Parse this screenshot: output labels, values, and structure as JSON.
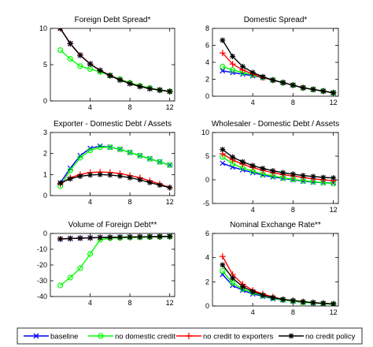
{
  "chart_data": [
    {
      "type": "line",
      "title": "Foreign Debt Spread*",
      "x": [
        1,
        2,
        3,
        4,
        5,
        6,
        7,
        8,
        9,
        10,
        11,
        12
      ],
      "xticks": [
        4,
        8,
        12
      ],
      "xlim": [
        0,
        12.5
      ],
      "ylim": [
        0,
        10
      ],
      "yticks": [
        0,
        5,
        10
      ],
      "series": [
        {
          "name": "baseline",
          "values": [
            10,
            7.9,
            6.3,
            5.1,
            4.2,
            3.5,
            2.9,
            2.4,
            2.0,
            1.7,
            1.5,
            1.3
          ]
        },
        {
          "name": "no domestic credit",
          "values": [
            7.0,
            5.8,
            4.8,
            4.4,
            4.0,
            3.5,
            3.0,
            2.5,
            2.1,
            1.8,
            1.5,
            1.3
          ]
        },
        {
          "name": "no credit to exporters",
          "values": [
            10,
            7.9,
            6.3,
            5.1,
            4.2,
            3.5,
            2.9,
            2.4,
            2.0,
            1.7,
            1.5,
            1.3
          ]
        },
        {
          "name": "no credit policy",
          "values": [
            10,
            7.9,
            6.3,
            5.1,
            4.2,
            3.5,
            2.9,
            2.4,
            2.0,
            1.7,
            1.5,
            1.3
          ]
        }
      ]
    },
    {
      "type": "line",
      "title": "Domestic Spread*",
      "x": [
        1,
        2,
        3,
        4,
        5,
        6,
        7,
        8,
        9,
        10,
        11,
        12
      ],
      "xticks": [
        4,
        8,
        12
      ],
      "xlim": [
        0,
        12.5
      ],
      "ylim": [
        0,
        8
      ],
      "yticks": [
        0,
        2,
        4,
        6,
        8
      ],
      "series": [
        {
          "name": "baseline",
          "values": [
            3.0,
            2.8,
            2.6,
            2.4,
            2.2,
            1.9,
            1.6,
            1.3,
            1.0,
            0.8,
            0.6,
            0.4
          ]
        },
        {
          "name": "no domestic credit",
          "values": [
            3.5,
            3.1,
            2.8,
            2.5,
            2.2,
            1.9,
            1.6,
            1.3,
            1.0,
            0.8,
            0.6,
            0.4
          ]
        },
        {
          "name": "no credit to exporters",
          "values": [
            5.1,
            3.8,
            3.1,
            2.6,
            2.2,
            1.9,
            1.6,
            1.3,
            1.0,
            0.8,
            0.6,
            0.4
          ]
        },
        {
          "name": "no credit policy",
          "values": [
            6.6,
            4.7,
            3.5,
            2.8,
            2.3,
            1.9,
            1.6,
            1.3,
            1.0,
            0.8,
            0.6,
            0.4
          ]
        }
      ]
    },
    {
      "type": "line",
      "title": "Exporter - Domestic Debt / Assets",
      "x": [
        1,
        2,
        3,
        4,
        5,
        6,
        7,
        8,
        9,
        10,
        11,
        12
      ],
      "xticks": [
        4,
        8,
        12
      ],
      "xlim": [
        0,
        12.5
      ],
      "ylim": [
        0,
        3
      ],
      "yticks": [
        0,
        1,
        2,
        3
      ],
      "series": [
        {
          "name": "baseline",
          "values": [
            0.6,
            1.3,
            1.9,
            2.25,
            2.35,
            2.3,
            2.2,
            2.05,
            1.9,
            1.75,
            1.6,
            1.45
          ]
        },
        {
          "name": "no domestic credit",
          "values": [
            0.45,
            1.2,
            1.8,
            2.15,
            2.3,
            2.3,
            2.2,
            2.05,
            1.9,
            1.75,
            1.6,
            1.45
          ]
        },
        {
          "name": "no credit to exporters",
          "values": [
            0.55,
            0.85,
            1.0,
            1.1,
            1.12,
            1.1,
            1.05,
            0.95,
            0.85,
            0.7,
            0.55,
            0.38
          ]
        },
        {
          "name": "no credit policy",
          "values": [
            0.6,
            0.8,
            0.92,
            0.98,
            1.0,
            0.98,
            0.93,
            0.85,
            0.75,
            0.62,
            0.5,
            0.38
          ]
        }
      ]
    },
    {
      "type": "line",
      "title": "Wholesaler - Domestic Debt / Assets",
      "x": [
        1,
        2,
        3,
        4,
        5,
        6,
        7,
        8,
        9,
        10,
        11,
        12
      ],
      "xticks": [
        4,
        8,
        12
      ],
      "xlim": [
        0,
        12.5
      ],
      "ylim": [
        -5,
        10
      ],
      "yticks": [
        -5,
        0,
        5,
        10
      ],
      "series": [
        {
          "name": "baseline",
          "values": [
            3.5,
            2.7,
            2.1,
            1.5,
            1.0,
            0.6,
            0.3,
            0.0,
            -0.3,
            -0.5,
            -0.6,
            -0.7
          ]
        },
        {
          "name": "no domestic credit",
          "values": [
            4.8,
            3.4,
            2.5,
            1.8,
            1.2,
            0.8,
            0.4,
            0.1,
            -0.2,
            -0.4,
            -0.6,
            -0.8
          ]
        },
        {
          "name": "no credit to exporters",
          "values": [
            5.5,
            4.2,
            3.3,
            2.6,
            2.0,
            1.5,
            1.1,
            0.8,
            0.5,
            0.2,
            0.0,
            -0.2
          ]
        },
        {
          "name": "no credit policy",
          "values": [
            6.4,
            4.8,
            3.8,
            3.0,
            2.4,
            1.9,
            1.5,
            1.2,
            0.9,
            0.7,
            0.5,
            0.4
          ]
        }
      ]
    },
    {
      "type": "line",
      "title": "Volume of Foreign Debt**",
      "x": [
        1,
        2,
        3,
        4,
        5,
        6,
        7,
        8,
        9,
        10,
        11,
        12
      ],
      "xticks": [
        4,
        8,
        12
      ],
      "xlim": [
        0,
        12.5
      ],
      "ylim": [
        -40,
        0
      ],
      "yticks": [
        -40,
        -30,
        -20,
        -10,
        0
      ],
      "series": [
        {
          "name": "baseline",
          "values": [
            -3.5,
            -3.2,
            -3.0,
            -2.8,
            -2.6,
            -2.5,
            -2.4,
            -2.3,
            -2.2,
            -2.1,
            -2.0,
            -1.9
          ]
        },
        {
          "name": "no domestic credit",
          "values": [
            -33,
            -28,
            -22,
            -13,
            -4,
            -3,
            -2.8,
            -2.6,
            -2.5,
            -2.3,
            -2.2,
            -2.1
          ]
        },
        {
          "name": "no credit to exporters",
          "values": [
            -3.5,
            -3.2,
            -3.0,
            -2.8,
            -2.6,
            -2.5,
            -2.4,
            -2.3,
            -2.2,
            -2.1,
            -2.0,
            -1.9
          ]
        },
        {
          "name": "no credit policy",
          "values": [
            -3.5,
            -3.2,
            -3.0,
            -2.8,
            -2.6,
            -2.5,
            -2.4,
            -2.3,
            -2.2,
            -2.1,
            -2.0,
            -1.9
          ]
        }
      ]
    },
    {
      "type": "line",
      "title": "Nominal Exchange Rate**",
      "x": [
        1,
        2,
        3,
        4,
        5,
        6,
        7,
        8,
        9,
        10,
        11,
        12
      ],
      "xticks": [
        4,
        8,
        12
      ],
      "xlim": [
        0,
        12.5
      ],
      "ylim": [
        0,
        6
      ],
      "yticks": [
        0,
        2,
        4,
        6
      ],
      "series": [
        {
          "name": "baseline",
          "values": [
            2.6,
            1.7,
            1.3,
            1.0,
            0.8,
            0.6,
            0.5,
            0.4,
            0.3,
            0.25,
            0.2,
            0.15
          ]
        },
        {
          "name": "no domestic credit",
          "values": [
            2.9,
            1.9,
            1.4,
            1.1,
            0.85,
            0.65,
            0.5,
            0.4,
            0.3,
            0.25,
            0.2,
            0.15
          ]
        },
        {
          "name": "no credit to exporters",
          "values": [
            4.1,
            2.6,
            1.8,
            1.3,
            1.0,
            0.75,
            0.55,
            0.45,
            0.35,
            0.28,
            0.22,
            0.17
          ]
        },
        {
          "name": "no credit policy",
          "values": [
            3.4,
            2.3,
            1.6,
            1.2,
            0.9,
            0.7,
            0.55,
            0.45,
            0.35,
            0.28,
            0.22,
            0.17
          ]
        }
      ]
    }
  ],
  "legend": {
    "placement": "bottom",
    "items": [
      {
        "label": "baseline",
        "color": "#0000ff",
        "marker": "x"
      },
      {
        "label": "no domestic credit",
        "color": "#00ff00",
        "marker": "o"
      },
      {
        "label": "no credit to exporters",
        "color": "#ff0000",
        "marker": "+"
      },
      {
        "label": "no credit policy",
        "color": "#000000",
        "marker": "*"
      }
    ]
  },
  "series_style": [
    {
      "color": "#0000ff",
      "marker": "x"
    },
    {
      "color": "#00ff00",
      "marker": "o"
    },
    {
      "color": "#ff0000",
      "marker": "+"
    },
    {
      "color": "#000000",
      "marker": "*"
    }
  ]
}
